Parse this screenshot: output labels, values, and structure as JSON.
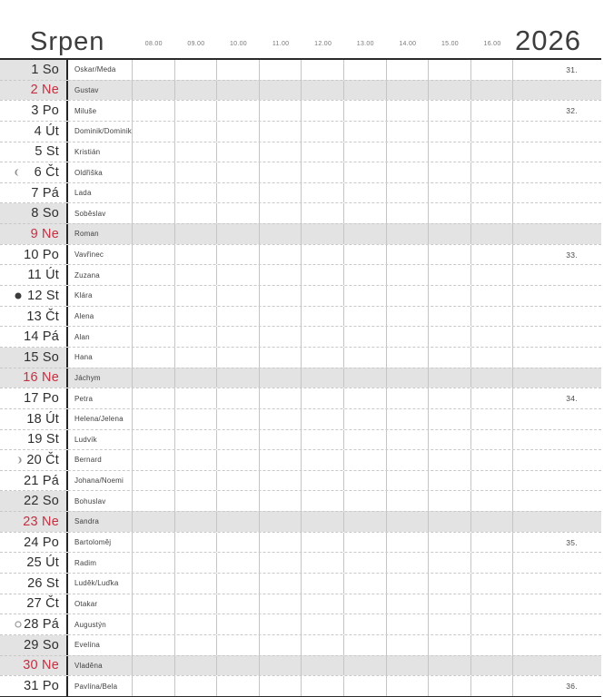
{
  "header": {
    "month": "Srpen",
    "year": "2026",
    "time_labels": [
      "08.00",
      "09.00",
      "10.00",
      "11.00",
      "12.00",
      "13.00",
      "14.00",
      "15.00",
      "16.00"
    ]
  },
  "colors": {
    "sunday_red": "#c53040",
    "weekend_band_gray": "#e3e3e4",
    "grid_line_gray": "#c5c5c5",
    "heavy_border_dark": "#2b2b2b"
  },
  "moon_icon_names": {
    "last-quarter": "last-quarter-moon-icon",
    "new": "new-moon-icon",
    "first-quarter": "first-quarter-moon-icon",
    "full": "full-moon-icon"
  },
  "days": [
    {
      "num": 1,
      "abbr": "So",
      "name": "Oskar/Meda",
      "type": "sat",
      "week": "31."
    },
    {
      "num": 2,
      "abbr": "Ne",
      "name": "Gustav",
      "type": "sun"
    },
    {
      "num": 3,
      "abbr": "Po",
      "name": "Miluše",
      "week": "32."
    },
    {
      "num": 4,
      "abbr": "Út",
      "name": "Dominik/Dominika"
    },
    {
      "num": 5,
      "abbr": "St",
      "name": "Kristián"
    },
    {
      "num": 6,
      "abbr": "Čt",
      "name": "Oldřiška",
      "moon": "last-quarter"
    },
    {
      "num": 7,
      "abbr": "Pá",
      "name": "Lada"
    },
    {
      "num": 8,
      "abbr": "So",
      "name": "Soběslav",
      "type": "sat"
    },
    {
      "num": 9,
      "abbr": "Ne",
      "name": "Roman",
      "type": "sun"
    },
    {
      "num": 10,
      "abbr": "Po",
      "name": "Vavřinec",
      "week": "33."
    },
    {
      "num": 11,
      "abbr": "Út",
      "name": "Zuzana"
    },
    {
      "num": 12,
      "abbr": "St",
      "name": "Klára",
      "moon": "new"
    },
    {
      "num": 13,
      "abbr": "Čt",
      "name": "Alena"
    },
    {
      "num": 14,
      "abbr": "Pá",
      "name": "Alan"
    },
    {
      "num": 15,
      "abbr": "So",
      "name": "Hana",
      "type": "sat"
    },
    {
      "num": 16,
      "abbr": "Ne",
      "name": "Jáchym",
      "type": "sun"
    },
    {
      "num": 17,
      "abbr": "Po",
      "name": "Petra",
      "week": "34."
    },
    {
      "num": 18,
      "abbr": "Út",
      "name": "Helena/Jelena"
    },
    {
      "num": 19,
      "abbr": "St",
      "name": "Ludvík"
    },
    {
      "num": 20,
      "abbr": "Čt",
      "name": "Bernard",
      "moon": "first-quarter"
    },
    {
      "num": 21,
      "abbr": "Pá",
      "name": "Johana/Noemi"
    },
    {
      "num": 22,
      "abbr": "So",
      "name": "Bohuslav",
      "type": "sat"
    },
    {
      "num": 23,
      "abbr": "Ne",
      "name": "Sandra",
      "type": "sun"
    },
    {
      "num": 24,
      "abbr": "Po",
      "name": "Bartoloměj",
      "week": "35."
    },
    {
      "num": 25,
      "abbr": "Út",
      "name": "Radim"
    },
    {
      "num": 26,
      "abbr": "St",
      "name": "Luděk/Luďka"
    },
    {
      "num": 27,
      "abbr": "Čt",
      "name": "Otakar"
    },
    {
      "num": 28,
      "abbr": "Pá",
      "name": "Augustýn",
      "moon": "full"
    },
    {
      "num": 29,
      "abbr": "So",
      "name": "Evelína",
      "type": "sat"
    },
    {
      "num": 30,
      "abbr": "Ne",
      "name": "Vladěna",
      "type": "sun"
    },
    {
      "num": 31,
      "abbr": "Po",
      "name": "Pavlína/Bela",
      "week": "36."
    }
  ]
}
